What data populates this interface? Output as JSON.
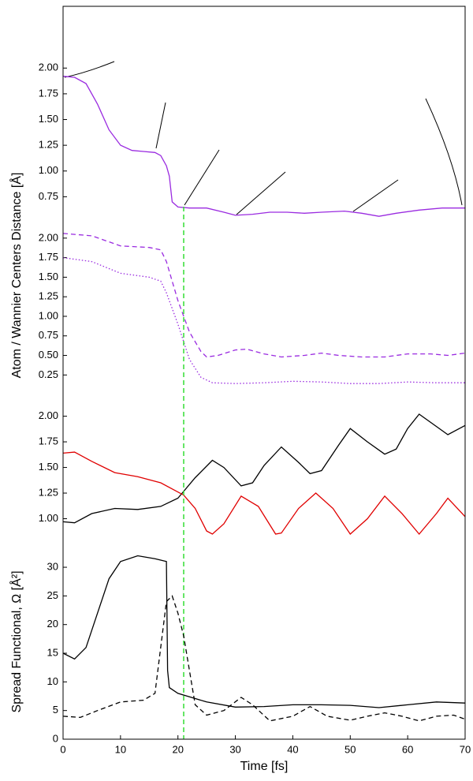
{
  "chart_data": [
    {
      "type": "line",
      "ylabel": "Atom / Wannier Centers Distance [Å]",
      "xlim": [
        0,
        70
      ],
      "ylim": [
        0.5,
        2.6
      ],
      "yticks": [
        {
          "value": 0.75,
          "label": "0.75"
        },
        {
          "value": 1,
          "label": "1.00"
        },
        {
          "value": 1.25,
          "label": "1.25"
        },
        {
          "value": 1.5,
          "label": "1.50"
        },
        {
          "value": 1.75,
          "label": "1.75"
        },
        {
          "value": 2,
          "label": "2.00"
        }
      ],
      "series": [
        {
          "color": "#9a2be0",
          "style": "solid",
          "x": [
            0,
            2,
            4,
            6,
            8,
            10,
            12,
            14,
            16,
            17,
            18,
            18.5,
            19,
            20,
            22,
            25,
            28,
            30,
            33,
            36,
            39,
            42,
            45,
            49,
            52,
            55,
            58,
            62,
            66,
            70
          ],
          "values": [
            1.92,
            1.91,
            1.85,
            1.65,
            1.4,
            1.25,
            1.2,
            1.19,
            1.18,
            1.15,
            1.05,
            0.95,
            0.7,
            0.65,
            0.64,
            0.64,
            0.6,
            0.57,
            0.58,
            0.6,
            0.6,
            0.59,
            0.6,
            0.61,
            0.59,
            0.56,
            0.59,
            0.62,
            0.64,
            0.64
          ]
        }
      ]
    },
    {
      "type": "line",
      "xlim": [
        0,
        70
      ],
      "ylim": [
        -0.12,
        2.2
      ],
      "yticks": [
        {
          "value": 0.25,
          "label": "0.25"
        },
        {
          "value": 0.5,
          "label": "0.50"
        },
        {
          "value": 0.75,
          "label": "0.75"
        },
        {
          "value": 1,
          "label": "1.00"
        },
        {
          "value": 1.25,
          "label": "1.25"
        },
        {
          "value": 1.5,
          "label": "1.50"
        },
        {
          "value": 1.75,
          "label": "1.75"
        },
        {
          "value": 2,
          "label": "2.00"
        }
      ],
      "series": [
        {
          "color": "#9a2be0",
          "style": "dash",
          "x": [
            0,
            5,
            10,
            15,
            17,
            18,
            20,
            22,
            24,
            25,
            27,
            30,
            32,
            35,
            38,
            42,
            45,
            48,
            52,
            56,
            60,
            64,
            67,
            70
          ],
          "values": [
            2.06,
            2.03,
            1.9,
            1.88,
            1.85,
            1.7,
            1.2,
            0.8,
            0.55,
            0.48,
            0.5,
            0.57,
            0.58,
            0.52,
            0.48,
            0.5,
            0.53,
            0.5,
            0.48,
            0.48,
            0.52,
            0.52,
            0.5,
            0.53
          ]
        },
        {
          "color": "#9a2be0",
          "style": "dot",
          "x": [
            0,
            5,
            10,
            15,
            17,
            18,
            20,
            22,
            24,
            26,
            30,
            35,
            40,
            45,
            50,
            55,
            60,
            65,
            70
          ],
          "values": [
            1.75,
            1.7,
            1.55,
            1.5,
            1.45,
            1.3,
            0.9,
            0.45,
            0.22,
            0.15,
            0.14,
            0.15,
            0.17,
            0.16,
            0.14,
            0.14,
            0.16,
            0.15,
            0.15
          ]
        }
      ]
    },
    {
      "type": "line",
      "xlim": [
        0,
        70
      ],
      "ylim": [
        0.75,
        2.12
      ],
      "yticks": [
        {
          "value": 1,
          "label": "1.00"
        },
        {
          "value": 1.25,
          "label": "1.25"
        },
        {
          "value": 1.5,
          "label": "1.50"
        },
        {
          "value": 1.75,
          "label": "1.75"
        },
        {
          "value": 2,
          "label": "2.00"
        }
      ],
      "series": [
        {
          "color": "#000000",
          "style": "solid",
          "x": [
            0,
            2,
            5,
            9,
            13,
            17,
            20,
            23,
            26,
            28,
            31,
            33,
            35,
            38,
            41,
            43,
            45,
            48,
            50,
            53,
            56,
            58,
            60,
            62,
            65,
            67,
            70
          ],
          "values": [
            0.97,
            0.96,
            1.05,
            1.1,
            1.09,
            1.12,
            1.2,
            1.4,
            1.57,
            1.5,
            1.32,
            1.35,
            1.52,
            1.7,
            1.55,
            1.44,
            1.47,
            1.72,
            1.88,
            1.75,
            1.63,
            1.68,
            1.88,
            2.02,
            1.9,
            1.82,
            1.91
          ]
        },
        {
          "color": "#e00000",
          "style": "solid",
          "x": [
            0,
            2,
            5,
            9,
            13,
            17,
            21,
            23,
            25,
            26,
            28,
            31,
            34,
            37,
            38,
            41,
            44,
            47,
            50,
            53,
            56,
            59,
            62,
            65,
            67,
            70
          ],
          "values": [
            1.64,
            1.65,
            1.56,
            1.45,
            1.41,
            1.35,
            1.23,
            1.1,
            0.88,
            0.85,
            0.95,
            1.22,
            1.12,
            0.85,
            0.86,
            1.1,
            1.25,
            1.1,
            0.85,
            1.0,
            1.22,
            1.05,
            0.85,
            1.05,
            1.2,
            1.02
          ]
        }
      ]
    },
    {
      "type": "line",
      "ylabel": "Spread Functional, Ω [Å²]",
      "xlabel": "Time [fs]",
      "xlim": [
        0,
        70
      ],
      "ylim": [
        0,
        34
      ],
      "xticks": [
        0,
        10,
        20,
        30,
        40,
        50,
        60,
        70
      ],
      "yticks": [
        0,
        5,
        10,
        15,
        20,
        25,
        30
      ],
      "marker_x": 21,
      "marker_color": "#33dd33",
      "series": [
        {
          "color": "#000000",
          "style": "solid",
          "x": [
            0,
            2,
            4,
            6,
            8,
            10,
            13,
            16,
            18,
            18.2,
            18.5,
            20,
            25,
            30,
            35,
            40,
            45,
            50,
            55,
            60,
            65,
            70
          ],
          "values": [
            15,
            14,
            16,
            22,
            28,
            31,
            32,
            31.5,
            31,
            12,
            9,
            8,
            6.5,
            5.6,
            5.7,
            6,
            6,
            5.9,
            5.5,
            6,
            6.5,
            6.3
          ]
        },
        {
          "color": "#000000",
          "style": "dash",
          "x": [
            0,
            3,
            6,
            10,
            14,
            16,
            18,
            19,
            20,
            21,
            23,
            25,
            28,
            31,
            33,
            36,
            40,
            43,
            46,
            50,
            53,
            56,
            59,
            62,
            65,
            68,
            70
          ],
          "values": [
            4,
            3.8,
            5,
            6.5,
            6.8,
            8,
            24,
            25,
            22,
            18,
            6,
            4.2,
            5,
            7.3,
            6,
            3.2,
            4,
            5.7,
            4,
            3.3,
            4,
            4.6,
            4,
            3.2,
            4,
            4.2,
            3.5
          ]
        }
      ]
    }
  ]
}
